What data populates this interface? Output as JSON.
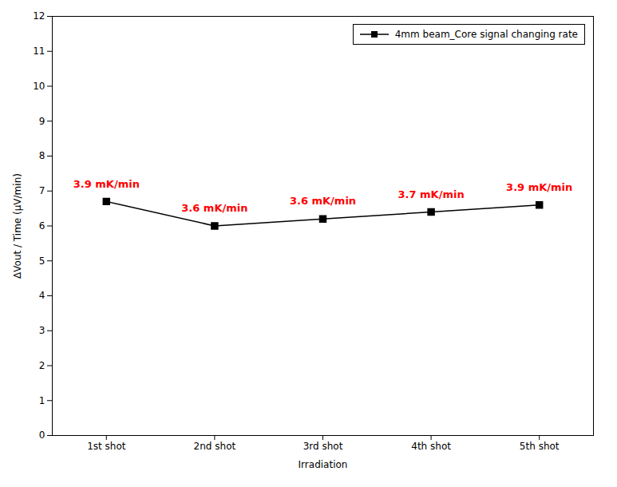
{
  "chart_data": {
    "type": "line",
    "x": [
      1,
      2,
      3,
      4,
      5
    ],
    "xlim": [
      0.5,
      5.5
    ],
    "xticks": [
      {
        "value": 1,
        "label": "1st shot"
      },
      {
        "value": 2,
        "label": "2nd shot"
      },
      {
        "value": 3,
        "label": "3rd shot"
      },
      {
        "value": 4,
        "label": "4th shot"
      },
      {
        "value": 5,
        "label": "5th shot"
      }
    ],
    "ylim": [
      0,
      12
    ],
    "yticks": [
      0,
      1,
      2,
      3,
      4,
      5,
      6,
      7,
      8,
      9,
      10,
      11,
      12
    ],
    "x_label": "Irradiation",
    "y_label": "ΔVout / Time (μV/min)",
    "series": [
      {
        "name": "4mm beam_Core signal changing rate",
        "color": "#000000",
        "marker": "square",
        "values": [
          6.7,
          6.0,
          6.2,
          6.4,
          6.6
        ]
      }
    ],
    "annotations": [
      {
        "x": 1,
        "y": 6.7,
        "text": "3.9 mK/min",
        "color": "#FF0000"
      },
      {
        "x": 2,
        "y": 6.0,
        "text": "3.6 mK/min",
        "color": "#FF0000"
      },
      {
        "x": 3,
        "y": 6.2,
        "text": "3.6 mK/min",
        "color": "#FF0000"
      },
      {
        "x": 4,
        "y": 6.4,
        "text": "3.7 mK/min",
        "color": "#FF0000"
      },
      {
        "x": 5,
        "y": 6.6,
        "text": "3.9 mK/min",
        "color": "#FF0000"
      }
    ],
    "legend": "upper right",
    "grid": false
  }
}
